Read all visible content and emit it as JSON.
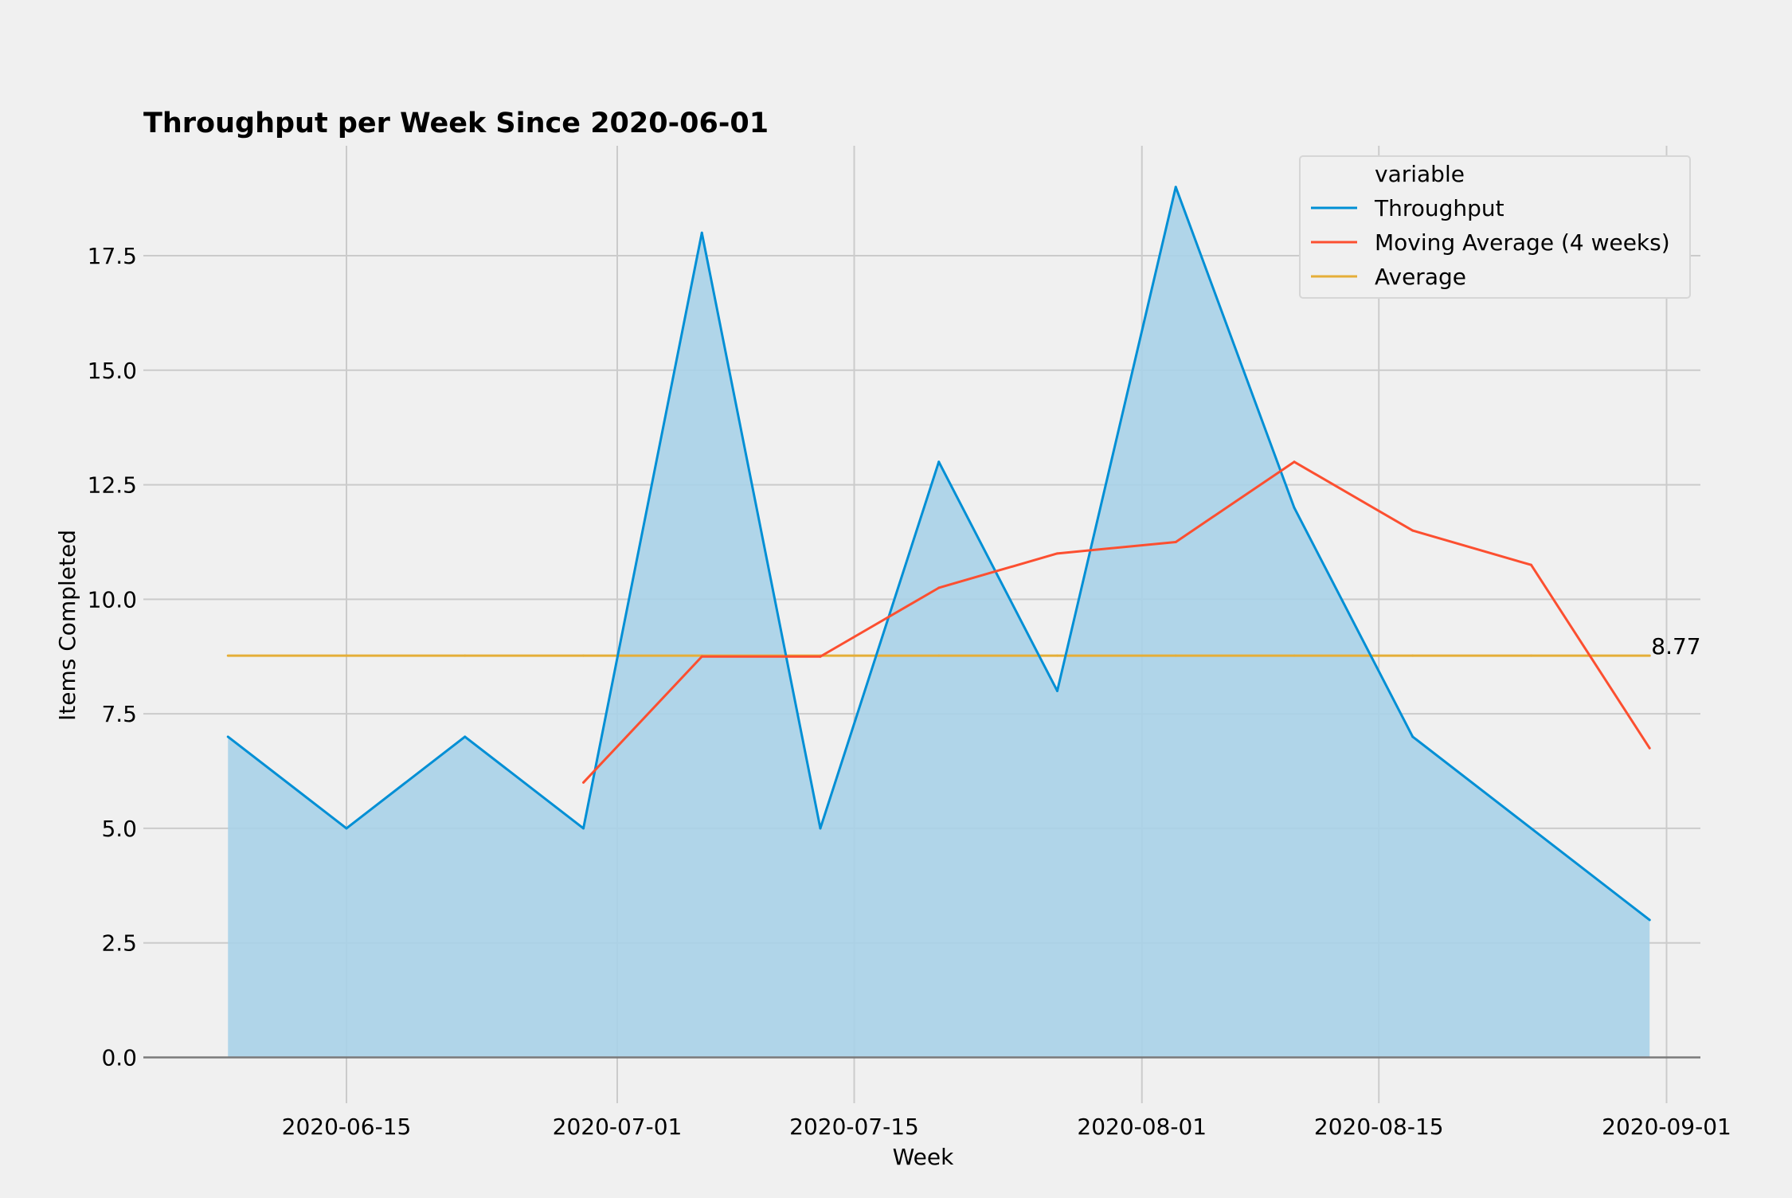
{
  "chart_data": {
    "type": "area",
    "title": "Throughput per Week Since 2020-06-01",
    "xlabel": "Week",
    "ylabel": "Items Completed",
    "xlim": [
      "2020-06-03",
      "2020-09-03"
    ],
    "ylim": [
      -1.0,
      19.9
    ],
    "x_ticks": [
      "2020-06-15",
      "2020-07-01",
      "2020-07-15",
      "2020-08-01",
      "2020-08-15",
      "2020-09-01"
    ],
    "y_ticks": [
      0.0,
      2.5,
      5.0,
      7.5,
      10.0,
      12.5,
      15.0,
      17.5
    ],
    "y_tick_labels": [
      "0.0",
      "2.5",
      "5.0",
      "7.5",
      "10.0",
      "12.5",
      "15.0",
      "17.5"
    ],
    "x": [
      "2020-06-08",
      "2020-06-15",
      "2020-06-22",
      "2020-06-29",
      "2020-07-06",
      "2020-07-13",
      "2020-07-20",
      "2020-07-27",
      "2020-08-03",
      "2020-08-10",
      "2020-08-17",
      "2020-08-24",
      "2020-08-31"
    ],
    "series": [
      {
        "name": "Throughput",
        "color": "#008fd5",
        "fill_color": "#a8d2e8",
        "values": [
          7,
          5,
          7,
          5,
          18,
          5,
          13,
          8,
          19,
          12,
          7,
          5,
          3
        ]
      },
      {
        "name": "Moving Average (4 weeks)",
        "color": "#fc4f30",
        "values": [
          null,
          null,
          null,
          6.0,
          8.75,
          8.75,
          10.25,
          11.0,
          11.25,
          13.0,
          11.5,
          10.75,
          6.75
        ]
      },
      {
        "name": "Average",
        "color": "#e5ae38",
        "values": [
          8.77,
          8.77,
          8.77,
          8.77,
          8.77,
          8.77,
          8.77,
          8.77,
          8.77,
          8.77,
          8.77,
          8.77,
          8.77
        ]
      }
    ],
    "annotation": {
      "text": "8.77",
      "x": "2020-08-31",
      "y": 8.77
    },
    "legend": {
      "title": "variable",
      "placement": "top-right"
    },
    "grid": true,
    "background_color": "#f0f0f0",
    "grid_color": "#cbcbcb"
  }
}
